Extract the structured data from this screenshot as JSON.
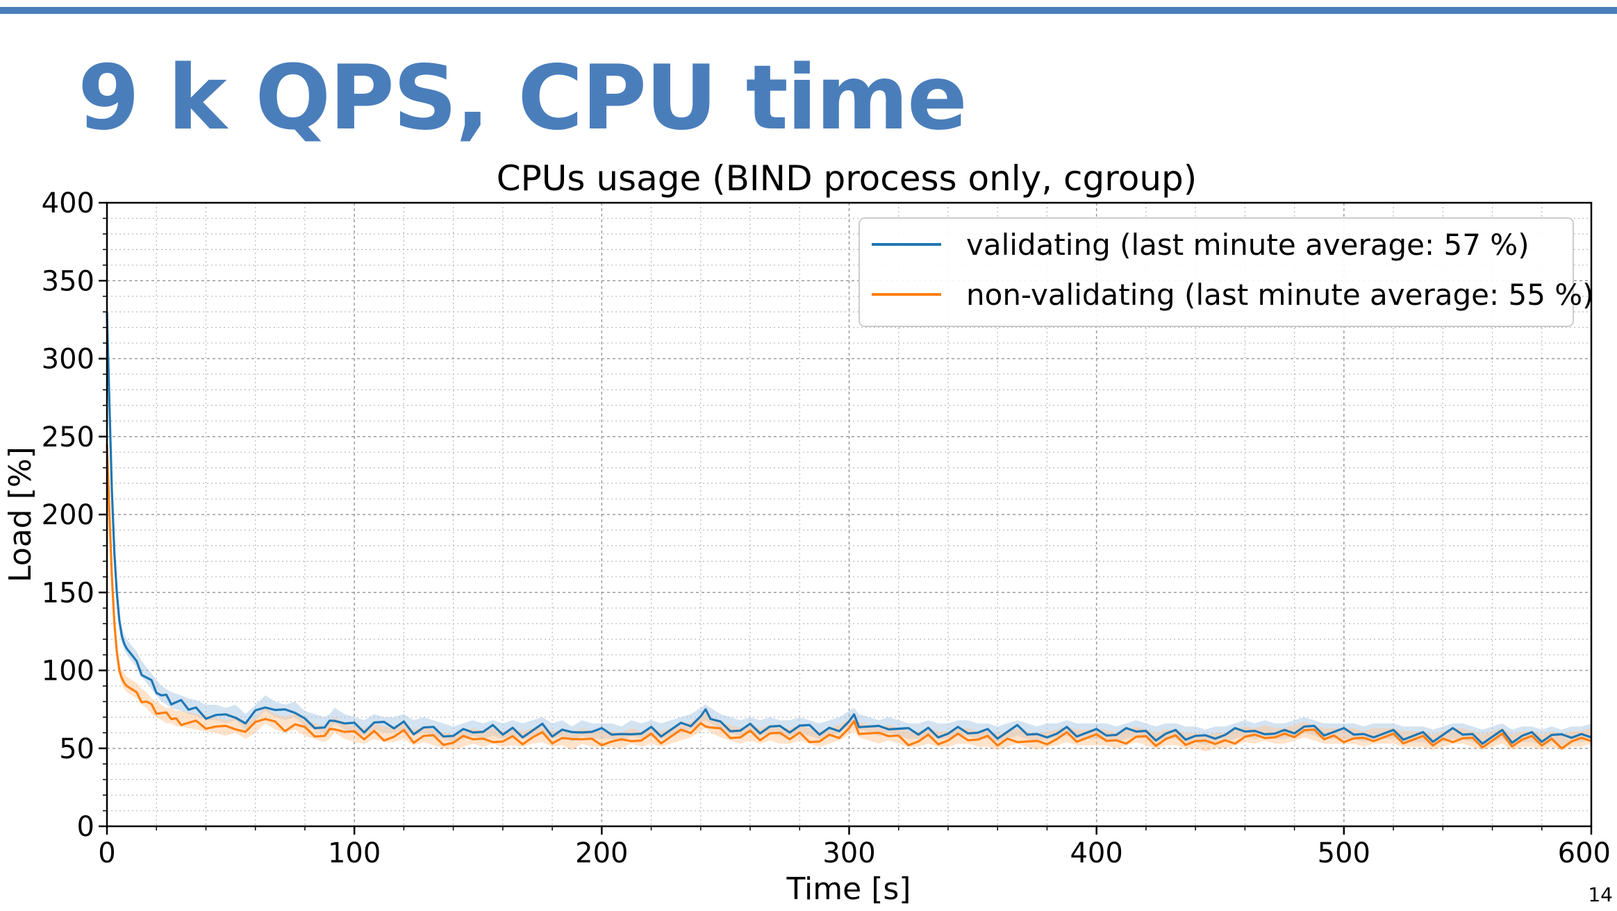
{
  "slide": {
    "title": "9 k QPS, CPU time",
    "page_number": "14",
    "accent_color": "#4a7ebb"
  },
  "chart_data": {
    "type": "line",
    "title": "CPUs usage (BIND process only, cgroup)",
    "xlabel": "Time [s]",
    "ylabel": "Load [%]",
    "xlim": [
      0,
      600
    ],
    "ylim": [
      0,
      400
    ],
    "xticks": [
      0,
      100,
      200,
      300,
      400,
      500,
      600
    ],
    "yticks": [
      0,
      50,
      100,
      150,
      200,
      250,
      300,
      350,
      400
    ],
    "grid": true,
    "minor_grid": true,
    "legend_position": "top-right",
    "series": [
      {
        "name": "validating (last minute average: 57 %)",
        "color": "#1f77b4",
        "band_color": "#a9c8e3",
        "x": [
          0,
          1,
          2,
          3,
          4,
          5,
          6,
          7,
          8,
          10,
          12,
          14,
          16,
          18,
          20,
          22,
          24,
          26,
          28,
          30,
          33,
          36,
          40,
          44,
          48,
          52,
          56,
          60,
          64,
          68,
          72,
          76,
          80,
          84,
          88,
          90,
          92,
          96,
          100,
          104,
          108,
          112,
          116,
          120,
          124,
          128,
          132,
          136,
          140,
          144,
          148,
          152,
          156,
          160,
          164,
          168,
          172,
          176,
          180,
          184,
          188,
          192,
          196,
          200,
          204,
          208,
          212,
          216,
          220,
          224,
          228,
          232,
          236,
          240,
          242,
          244,
          248,
          252,
          256,
          260,
          264,
          268,
          272,
          276,
          280,
          284,
          288,
          292,
          296,
          300,
          302,
          304,
          308,
          312,
          316,
          320,
          324,
          328,
          332,
          336,
          340,
          344,
          348,
          352,
          356,
          360,
          364,
          368,
          372,
          376,
          380,
          384,
          388,
          392,
          396,
          400,
          404,
          408,
          412,
          416,
          420,
          424,
          428,
          432,
          436,
          440,
          444,
          448,
          452,
          456,
          460,
          464,
          468,
          472,
          476,
          480,
          484,
          488,
          492,
          496,
          500,
          504,
          508,
          512,
          516,
          520,
          524,
          528,
          532,
          536,
          540,
          544,
          548,
          552,
          556,
          560,
          564,
          568,
          572,
          576,
          580,
          584,
          588,
          592,
          596,
          600
        ],
        "y": [
          330,
          270,
          215,
          175,
          150,
          132,
          122,
          117,
          114,
          110,
          106,
          100,
          96,
          92,
          88,
          84,
          82,
          80,
          79,
          78,
          76,
          75,
          72,
          72,
          70,
          72,
          66,
          72,
          78,
          74,
          72,
          74,
          68,
          66,
          64,
          66,
          70,
          66,
          64,
          62,
          66,
          64,
          64,
          66,
          62,
          64,
          62,
          60,
          58,
          60,
          62,
          60,
          62,
          60,
          62,
          60,
          62,
          64,
          60,
          62,
          58,
          62,
          60,
          60,
          60,
          58,
          62,
          60,
          62,
          60,
          62,
          64,
          66,
          70,
          72,
          70,
          66,
          64,
          62,
          64,
          62,
          64,
          62,
          62,
          64,
          62,
          60,
          62,
          64,
          68,
          70,
          66,
          64,
          62,
          64,
          62,
          60,
          60,
          62,
          60,
          60,
          62,
          62,
          60,
          60,
          58,
          60,
          62,
          60,
          58,
          60,
          60,
          62,
          60,
          60,
          60,
          60,
          58,
          60,
          62,
          60,
          58,
          60,
          60,
          58,
          58,
          56,
          58,
          58,
          60,
          62,
          60,
          62,
          60,
          60,
          62,
          64,
          62,
          60,
          60,
          60,
          60,
          58,
          60,
          60,
          60,
          58,
          58,
          58,
          56,
          58,
          60,
          60,
          58,
          56,
          58,
          60,
          56,
          58,
          58,
          56,
          58,
          56,
          58,
          58,
          60
        ]
      },
      {
        "name": "non-validating (last minute average: 55 %)",
        "color": "#ff7f0e",
        "band_color": "#ffc898",
        "x": [
          0,
          1,
          2,
          3,
          4,
          5,
          6,
          7,
          8,
          10,
          12,
          14,
          16,
          18,
          20,
          22,
          24,
          26,
          28,
          30,
          33,
          36,
          40,
          44,
          48,
          52,
          56,
          60,
          64,
          68,
          72,
          76,
          80,
          84,
          88,
          90,
          92,
          96,
          100,
          104,
          108,
          112,
          116,
          120,
          124,
          128,
          132,
          136,
          140,
          144,
          148,
          152,
          156,
          160,
          164,
          168,
          172,
          176,
          180,
          184,
          188,
          192,
          196,
          200,
          204,
          208,
          212,
          216,
          220,
          224,
          228,
          232,
          236,
          240,
          242,
          244,
          248,
          252,
          256,
          260,
          264,
          268,
          272,
          276,
          280,
          284,
          288,
          292,
          296,
          300,
          302,
          304,
          308,
          312,
          316,
          320,
          324,
          328,
          332,
          336,
          340,
          344,
          348,
          352,
          356,
          360,
          364,
          368,
          372,
          376,
          380,
          384,
          388,
          392,
          396,
          400,
          404,
          408,
          412,
          416,
          420,
          424,
          428,
          432,
          436,
          440,
          444,
          448,
          452,
          456,
          460,
          464,
          468,
          472,
          476,
          480,
          484,
          488,
          492,
          496,
          500,
          504,
          508,
          512,
          516,
          520,
          524,
          528,
          532,
          536,
          540,
          544,
          548,
          552,
          556,
          560,
          564,
          568,
          572,
          576,
          580,
          584,
          588,
          592,
          596,
          600
        ],
        "y": [
          245,
          200,
          160,
          130,
          112,
          100,
          95,
          92,
          90,
          88,
          86,
          82,
          80,
          76,
          74,
          72,
          70,
          70,
          68,
          68,
          67,
          66,
          65,
          64,
          62,
          64,
          60,
          64,
          70,
          66,
          64,
          66,
          62,
          60,
          58,
          60,
          64,
          60,
          58,
          57,
          60,
          58,
          58,
          60,
          56,
          58,
          56,
          54,
          53,
          55,
          57,
          55,
          57,
          55,
          56,
          55,
          57,
          58,
          55,
          56,
          53,
          57,
          55,
          55,
          55,
          54,
          57,
          55,
          57,
          55,
          57,
          59,
          61,
          65,
          67,
          64,
          61,
          59,
          57,
          59,
          57,
          59,
          57,
          57,
          59,
          57,
          55,
          57,
          59,
          63,
          65,
          61,
          59,
          57,
          59,
          57,
          55,
          55,
          57,
          55,
          55,
          57,
          57,
          55,
          55,
          53,
          55,
          57,
          55,
          53,
          55,
          56,
          58,
          56,
          56,
          56,
          56,
          54,
          56,
          58,
          56,
          54,
          56,
          56,
          54,
          54,
          52,
          54,
          54,
          56,
          58,
          57,
          59,
          57,
          57,
          59,
          61,
          59,
          57,
          57,
          57,
          57,
          55,
          57,
          57,
          57,
          55,
          55,
          55,
          53,
          55,
          57,
          57,
          55,
          53,
          55,
          57,
          53,
          55,
          55,
          53,
          55,
          53,
          55,
          55,
          57
        ]
      }
    ]
  }
}
